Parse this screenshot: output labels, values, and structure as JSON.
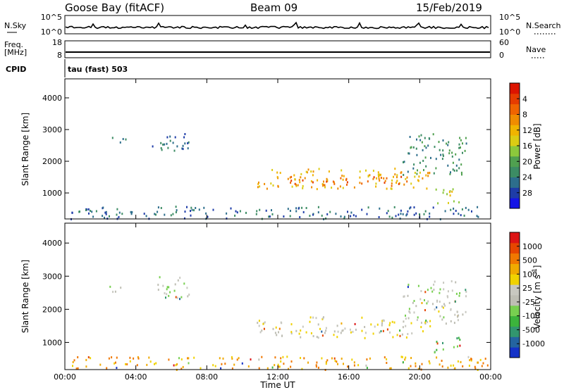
{
  "header": {
    "station": "Goose Bay (fitACF)",
    "beam": "Beam 09",
    "date": "15/Feb/2019"
  },
  "nsky": {
    "label": "N.Sky",
    "right_label": "N.Search",
    "left_ticks": [
      "10^5",
      "10^0"
    ],
    "right_ticks": [
      "10^5",
      "10^0"
    ]
  },
  "freq": {
    "label_top": "Freq.",
    "label_unit": "[MHz]",
    "left_ticks": [
      "18",
      "8"
    ],
    "right_label": "Nave",
    "right_ticks": [
      "60",
      "0"
    ]
  },
  "cpid": {
    "label": "CPID",
    "value": "tau (fast) 503"
  },
  "chart_data": [
    {
      "type": "heatmap",
      "name": "power",
      "ylabel": "Slant Range [km]",
      "xlabel": "Time UT",
      "x_ticks": [
        "00:00",
        "04:00",
        "08:00",
        "12:00",
        "16:00",
        "20:00",
        "00:00"
      ],
      "y_ticks": [
        1000,
        2000,
        3000,
        4000
      ],
      "xlim_hours": [
        0,
        24
      ],
      "ylim_km": [
        180,
        4600
      ],
      "colorbar": {
        "label": "Power [dB]",
        "ticks": [
          "4",
          "8",
          "12",
          "16",
          "20",
          "24",
          "28"
        ],
        "colors": [
          "#1414e6",
          "#1e3ca8",
          "#2d6e8c",
          "#3c8c64",
          "#50a050",
          "#8cc83c",
          "#dccc14",
          "#f0b400",
          "#f08c00",
          "#f06400",
          "#e63c00",
          "#dc1400"
        ]
      },
      "regions": [
        {
          "t0": 2.5,
          "t1": 3.4,
          "r0": 2550,
          "r1": 2800,
          "level": 2
        },
        {
          "t0": 4.9,
          "t1": 7.0,
          "r0": 2300,
          "r1": 3000,
          "level": 2
        },
        {
          "t0": 10.8,
          "t1": 20.6,
          "r0": 1150,
          "r1": 1800,
          "level": 7
        },
        {
          "t0": 12.5,
          "t1": 19.5,
          "r0": 1250,
          "r1": 1550,
          "level": 9
        },
        {
          "t0": 19.0,
          "t1": 22.6,
          "r0": 1600,
          "r1": 2900,
          "level": 3
        },
        {
          "t0": 20.8,
          "t1": 22.3,
          "r0": 700,
          "r1": 1200,
          "level": 6
        },
        {
          "t0": 0.3,
          "t1": 23.9,
          "r0": 200,
          "r1": 600,
          "level": 2
        }
      ]
    },
    {
      "type": "heatmap",
      "name": "velocity",
      "ylabel": "Slant Range [km]",
      "xlabel": "Time UT",
      "x_ticks": [
        "00:00",
        "04:00",
        "08:00",
        "12:00",
        "16:00",
        "20:00",
        "00:00"
      ],
      "y_ticks": [
        1000,
        2000,
        3000,
        4000
      ],
      "xlim_hours": [
        0,
        24
      ],
      "ylim_km": [
        180,
        4600
      ],
      "colorbar": {
        "label": "Velocity [m s^-1]",
        "ticks": [
          "1000",
          "500",
          "100",
          "25",
          "-25",
          "-100",
          "-500",
          "-1000"
        ],
        "colors": [
          "#1432c8",
          "#2464a0",
          "#32966e",
          "#3cb43c",
          "#78d050",
          "#bebeb4",
          "#c8c8c0",
          "#f0d200",
          "#f0aa00",
          "#f07800",
          "#e64600",
          "#dc1414"
        ]
      },
      "regions": [
        {
          "t0": 2.5,
          "t1": 3.4,
          "r0": 2550,
          "r1": 2800,
          "level": 5
        },
        {
          "t0": 4.9,
          "t1": 7.0,
          "r0": 2300,
          "r1": 3000,
          "level": 5
        },
        {
          "t0": 10.8,
          "t1": 20.6,
          "r0": 1150,
          "r1": 1800,
          "level": 6
        },
        {
          "t0": 19.0,
          "t1": 22.6,
          "r0": 1600,
          "r1": 2900,
          "level": 5
        },
        {
          "t0": 20.8,
          "t1": 22.3,
          "r0": 700,
          "r1": 1200,
          "level": 3
        },
        {
          "t0": 0.3,
          "t1": 23.9,
          "r0": 200,
          "r1": 600,
          "level": 8
        }
      ]
    }
  ]
}
